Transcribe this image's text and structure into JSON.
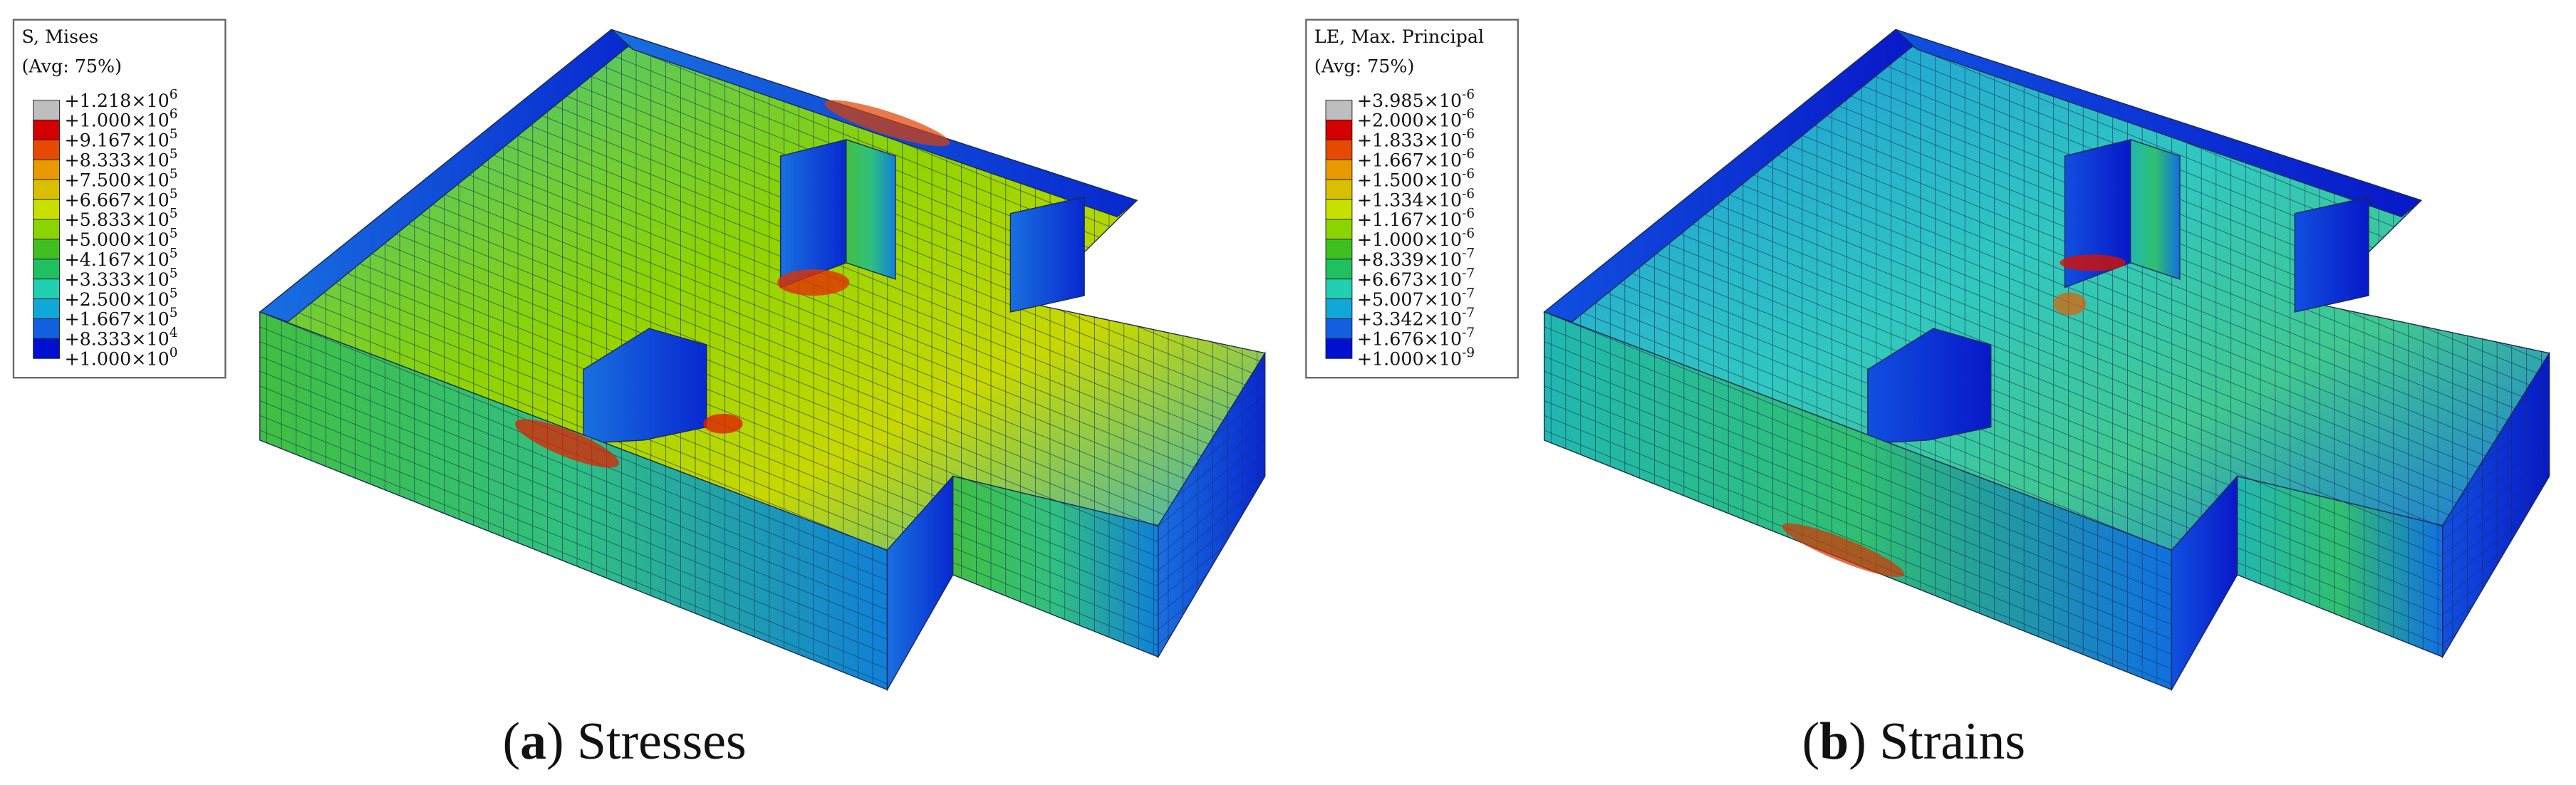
{
  "panels": [
    {
      "legend": {
        "title_lines": [
          "S, Mises",
          "(Avg: 75%)"
        ],
        "colors": [
          "#bebebe",
          "#d40000",
          "#e64a00",
          "#e89a00",
          "#d8c000",
          "#c8e000",
          "#8cd400",
          "#40c020",
          "#20c060",
          "#20d0b0",
          "#10a8d8",
          "#1060e0",
          "#0010d0"
        ],
        "labels": [
          {
            "base": "+1.218×10",
            "exp": "6"
          },
          {
            "base": "+1.000×10",
            "exp": "6"
          },
          {
            "base": "+9.167×10",
            "exp": "5"
          },
          {
            "base": "+8.333×10",
            "exp": "5"
          },
          {
            "base": "+7.500×10",
            "exp": "5"
          },
          {
            "base": "+6.667×10",
            "exp": "5"
          },
          {
            "base": "+5.833×10",
            "exp": "5"
          },
          {
            "base": "+5.000×10",
            "exp": "5"
          },
          {
            "base": "+4.167×10",
            "exp": "5"
          },
          {
            "base": "+3.333×10",
            "exp": "5"
          },
          {
            "base": "+2.500×10",
            "exp": "5"
          },
          {
            "base": "+1.667×10",
            "exp": "5"
          },
          {
            "base": "+8.333×10",
            "exp": "4"
          },
          {
            "base": "+1.000×10",
            "exp": "0"
          }
        ]
      },
      "caption_parts": [
        "(",
        "a",
        ") Stresses"
      ]
    },
    {
      "legend": {
        "title_lines": [
          "LE, Max. Principal",
          "(Avg: 75%)"
        ],
        "colors": [
          "#bebebe",
          "#d40000",
          "#e64a00",
          "#e89a00",
          "#d8c000",
          "#c8e000",
          "#8cd400",
          "#40c020",
          "#20c060",
          "#20d0b0",
          "#10a8d8",
          "#1060e0",
          "#0010d0"
        ],
        "labels": [
          {
            "base": "+3.985×10",
            "exp": "-6"
          },
          {
            "base": "+2.000×10",
            "exp": "-6"
          },
          {
            "base": "+1.833×10",
            "exp": "-6"
          },
          {
            "base": "+1.667×10",
            "exp": "-6"
          },
          {
            "base": "+1.500×10",
            "exp": "-6"
          },
          {
            "base": "+1.334×10",
            "exp": "-6"
          },
          {
            "base": "+1.167×10",
            "exp": "-6"
          },
          {
            "base": "+1.000×10",
            "exp": "-6"
          },
          {
            "base": "+8.339×10",
            "exp": "-7"
          },
          {
            "base": "+6.673×10",
            "exp": "-7"
          },
          {
            "base": "+5.007×10",
            "exp": "-7"
          },
          {
            "base": "+3.342×10",
            "exp": "-7"
          },
          {
            "base": "+1.676×10",
            "exp": "-7"
          },
          {
            "base": "+1.000×10",
            "exp": "-9"
          }
        ]
      },
      "caption_parts": [
        "(",
        "b",
        ") Strains"
      ]
    }
  ]
}
